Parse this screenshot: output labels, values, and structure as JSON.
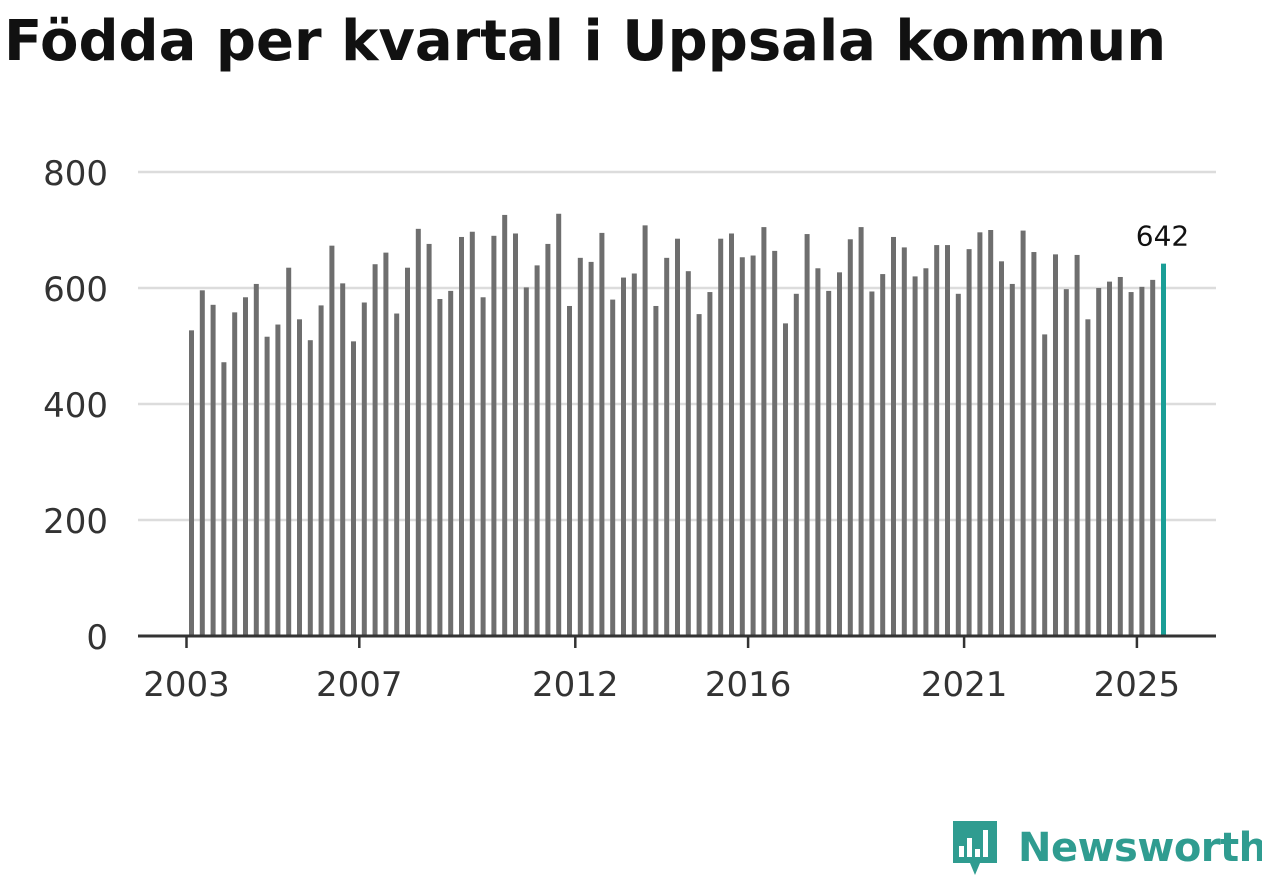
{
  "title": "Födda per kvartal i Uppsala kommun",
  "brand": {
    "name": "Newsworthy",
    "logo_icon": "newsworthy-logo-icon",
    "color": "#2f9c90"
  },
  "chart_data": {
    "type": "bar",
    "title": "Födda per kvartal i Uppsala kommun",
    "xlabel": "",
    "ylabel": "",
    "ylim": [
      0,
      800
    ],
    "yticks": [
      0,
      200,
      400,
      600,
      800
    ],
    "xtick_labels": [
      "2003",
      "2007",
      "2012",
      "2016",
      "2021",
      "2025"
    ],
    "xtick_positions": [
      0,
      16,
      36,
      52,
      72,
      88
    ],
    "grid": true,
    "bar_color": "#6e6e6e",
    "highlight_color": "#1a9e96",
    "highlight_index": 90,
    "highlight_label": "642",
    "values": [
      527,
      596,
      571,
      472,
      558,
      584,
      607,
      516,
      537,
      635,
      546,
      510,
      570,
      673,
      608,
      508,
      575,
      641,
      661,
      556,
      635,
      702,
      676,
      581,
      595,
      688,
      697,
      584,
      690,
      726,
      694,
      601,
      639,
      676,
      728,
      569,
      652,
      645,
      695,
      580,
      618,
      625,
      708,
      569,
      652,
      685,
      629,
      555,
      593,
      685,
      694,
      653,
      656,
      705,
      664,
      539,
      590,
      693,
      634,
      595,
      627,
      684,
      705,
      594,
      624,
      688,
      670,
      620,
      634,
      674,
      674,
      590,
      667,
      696,
      700,
      646,
      607,
      699,
      662,
      520,
      658,
      598,
      657,
      546,
      600,
      611,
      619,
      593,
      602,
      614,
      642
    ]
  }
}
